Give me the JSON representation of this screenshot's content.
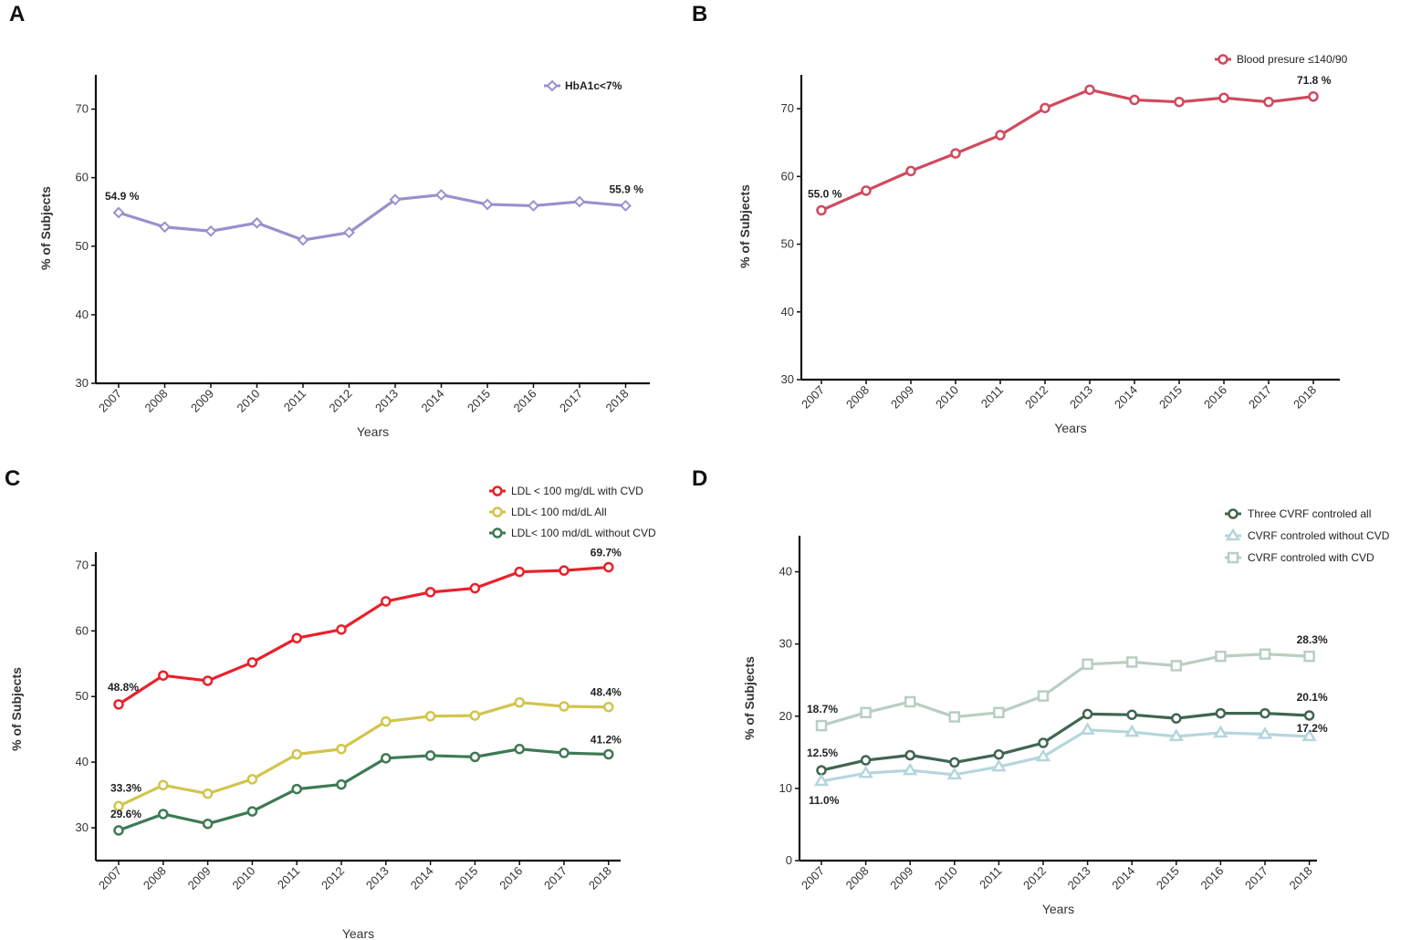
{
  "panels": [
    {
      "letter": "A",
      "chart_data": {
        "type": "line",
        "title": "",
        "xlabel": "Years",
        "ylabel": "% of Subjects",
        "ylim": [
          30,
          75
        ],
        "yticks": [
          30,
          40,
          50,
          60,
          70
        ],
        "categories": [
          "2007",
          "2008",
          "2009",
          "2010",
          "2011",
          "2012",
          "2013",
          "2014",
          "2015",
          "2016",
          "2017",
          "2018"
        ],
        "series": [
          {
            "name": "HbA1c<7%",
            "color": "#9b8fcf",
            "marker": "diamond",
            "values": [
              54.9,
              52.8,
              52.2,
              53.4,
              50.9,
              52.0,
              56.8,
              57.5,
              56.1,
              55.9,
              56.5,
              55.9
            ]
          }
        ],
        "annotations": [
          {
            "text": "54.9 %",
            "series": 0,
            "index": 0
          },
          {
            "text": "55.9 %",
            "series": 0,
            "index": 11
          }
        ],
        "legend_position": "top-right"
      }
    },
    {
      "letter": "B",
      "chart_data": {
        "type": "line",
        "title": "",
        "xlabel": "Years",
        "ylabel": "% of Subjects",
        "ylim": [
          30,
          75
        ],
        "yticks": [
          30,
          40,
          50,
          60,
          70
        ],
        "categories": [
          "2007",
          "2008",
          "2009",
          "2010",
          "2011",
          "2012",
          "2013",
          "2014",
          "2015",
          "2016",
          "2017",
          "2018"
        ],
        "series": [
          {
            "name": "Blood presure ≤140/90",
            "color": "#cf4a5e",
            "marker": "circle",
            "values": [
              55.0,
              57.9,
              60.8,
              63.4,
              66.1,
              70.1,
              72.8,
              71.3,
              71.0,
              71.6,
              71.0,
              71.8
            ]
          }
        ],
        "annotations": [
          {
            "text": "55.0 %",
            "series": 0,
            "index": 0
          },
          {
            "text": "71.8 %",
            "series": 0,
            "index": 11
          }
        ],
        "legend_position": "top-right"
      }
    },
    {
      "letter": "C",
      "chart_data": {
        "type": "line",
        "title": "",
        "xlabel": "Years",
        "ylabel": "% of Subjects",
        "ylim": [
          25,
          72
        ],
        "yticks": [
          30,
          40,
          50,
          60,
          70
        ],
        "categories": [
          "2007",
          "2008",
          "2009",
          "2010",
          "2011",
          "2012",
          "2013",
          "2014",
          "2015",
          "2016",
          "2017",
          "2018"
        ],
        "series": [
          {
            "name": "LDL < 100 mg/dL with CVD",
            "color": "#e8212b",
            "marker": "circle",
            "values": [
              48.8,
              53.2,
              52.4,
              55.2,
              58.9,
              60.2,
              64.5,
              65.9,
              66.5,
              69.0,
              69.2,
              69.7
            ]
          },
          {
            "name": "LDL< 100 md/dL All",
            "color": "#d1c54d",
            "marker": "circle",
            "values": [
              33.3,
              36.5,
              35.2,
              37.4,
              41.2,
              42.0,
              46.2,
              47.0,
              47.1,
              49.1,
              48.5,
              48.4
            ]
          },
          {
            "name": "LDL< 100 md/dL without  CVD",
            "color": "#3e7a54",
            "marker": "circle",
            "values": [
              29.6,
              32.1,
              30.6,
              32.5,
              35.9,
              36.6,
              40.6,
              41.0,
              40.8,
              42.0,
              41.4,
              41.2
            ]
          }
        ],
        "annotations": [
          {
            "text": "48.8%",
            "series": 0,
            "index": 0
          },
          {
            "text": "69.7%",
            "series": 0,
            "index": 11
          },
          {
            "text": "33.3%",
            "series": 1,
            "index": 0
          },
          {
            "text": "48.4%",
            "series": 1,
            "index": 11
          },
          {
            "text": "29.6%",
            "series": 2,
            "index": 0
          },
          {
            "text": "41.2%",
            "series": 2,
            "index": 11
          }
        ],
        "legend_position": "top-right"
      }
    },
    {
      "letter": "D",
      "chart_data": {
        "type": "line",
        "title": "",
        "xlabel": "Years",
        "ylabel": "% of Subjects",
        "ylim": [
          0,
          45
        ],
        "yticks": [
          0,
          10,
          20,
          30,
          40
        ],
        "categories": [
          "2007",
          "2008",
          "2009",
          "2010",
          "2011",
          "2012",
          "2013",
          "2014",
          "2015",
          "2016",
          "2017",
          "2018"
        ],
        "series": [
          {
            "name": "Three CVRF controled all",
            "color": "#3f6650",
            "marker": "circle",
            "values": [
              12.5,
              13.9,
              14.6,
              13.6,
              14.7,
              16.3,
              20.3,
              20.2,
              19.7,
              20.4,
              20.4,
              20.1
            ]
          },
          {
            "name": "CVRF controled without CVD",
            "color": "#b5d6dc",
            "marker": "triangle",
            "values": [
              11.0,
              12.1,
              12.5,
              11.9,
              13.0,
              14.4,
              18.1,
              17.8,
              17.2,
              17.7,
              17.5,
              17.2
            ]
          },
          {
            "name": "CVRF controled with CVD",
            "color": "#b9cfc1",
            "marker": "square",
            "values": [
              18.7,
              20.5,
              22.0,
              19.9,
              20.5,
              22.8,
              27.2,
              27.5,
              27.0,
              28.3,
              28.6,
              28.3
            ]
          }
        ],
        "annotations": [
          {
            "text": "12.5%",
            "series": 0,
            "index": 0
          },
          {
            "text": "20.1%",
            "series": 0,
            "index": 11
          },
          {
            "text": "11.0%",
            "series": 1,
            "index": 0
          },
          {
            "text": "17.2%",
            "series": 1,
            "index": 11
          },
          {
            "text": "18.7%",
            "series": 2,
            "index": 0
          },
          {
            "text": "28.3%",
            "series": 2,
            "index": 11
          }
        ],
        "legend_position": "top-right"
      }
    }
  ]
}
